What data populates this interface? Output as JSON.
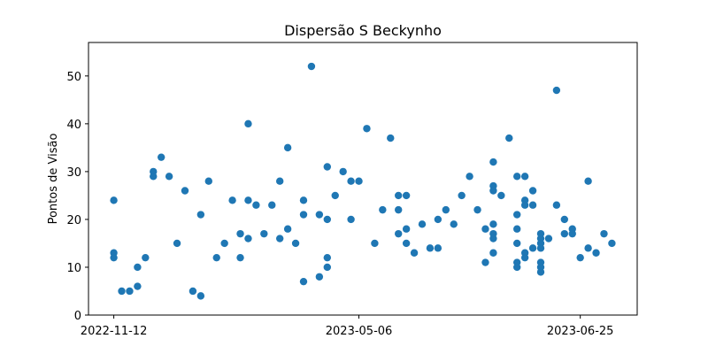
{
  "chart_data": {
    "type": "scatter",
    "title": "Dispersão S Beckynho",
    "xlabel": "",
    "ylabel": "Pontos de Visão",
    "grid": false,
    "legend": "none",
    "marker_color": "#1f77b4",
    "ylim": [
      0,
      57
    ],
    "yticks": [
      0,
      10,
      20,
      30,
      40,
      50
    ],
    "xlim_index": [
      -3.2,
      66.2
    ],
    "xticks": [
      {
        "index": 0,
        "label": "2022-11-12"
      },
      {
        "index": 31,
        "label": "2023-05-06"
      },
      {
        "index": 59,
        "label": "2023-06-25"
      }
    ],
    "points": [
      [
        0,
        24
      ],
      [
        0,
        13
      ],
      [
        0,
        12
      ],
      [
        1,
        5
      ],
      [
        2,
        5
      ],
      [
        3,
        10
      ],
      [
        3,
        6
      ],
      [
        4,
        12
      ],
      [
        5,
        30
      ],
      [
        5,
        29
      ],
      [
        6,
        33
      ],
      [
        7,
        29
      ],
      [
        8,
        15
      ],
      [
        9,
        26
      ],
      [
        10,
        5
      ],
      [
        11,
        21
      ],
      [
        11,
        4
      ],
      [
        12,
        28
      ],
      [
        13,
        12
      ],
      [
        14,
        15
      ],
      [
        15,
        24
      ],
      [
        16,
        17
      ],
      [
        16,
        12
      ],
      [
        17,
        40
      ],
      [
        17,
        24
      ],
      [
        17,
        16
      ],
      [
        18,
        23
      ],
      [
        19,
        17
      ],
      [
        20,
        23
      ],
      [
        21,
        28
      ],
      [
        21,
        16
      ],
      [
        22,
        35
      ],
      [
        22,
        18
      ],
      [
        23,
        15
      ],
      [
        24,
        24
      ],
      [
        24,
        21
      ],
      [
        24,
        7
      ],
      [
        25,
        52
      ],
      [
        26,
        21
      ],
      [
        26,
        8
      ],
      [
        27,
        31
      ],
      [
        27,
        20
      ],
      [
        27,
        12
      ],
      [
        27,
        10
      ],
      [
        28,
        25
      ],
      [
        29,
        30
      ],
      [
        30,
        28
      ],
      [
        30,
        20
      ],
      [
        31,
        28
      ],
      [
        32,
        39
      ],
      [
        33,
        15
      ],
      [
        34,
        22
      ],
      [
        35,
        37
      ],
      [
        36,
        25
      ],
      [
        36,
        22
      ],
      [
        36,
        17
      ],
      [
        37,
        25
      ],
      [
        37,
        18
      ],
      [
        37,
        15
      ],
      [
        38,
        13
      ],
      [
        39,
        19
      ],
      [
        40,
        14
      ],
      [
        41,
        20
      ],
      [
        41,
        14
      ],
      [
        42,
        22
      ],
      [
        43,
        19
      ],
      [
        44,
        25
      ],
      [
        45,
        29
      ],
      [
        46,
        22
      ],
      [
        47,
        18
      ],
      [
        47,
        11
      ],
      [
        48,
        32
      ],
      [
        48,
        27
      ],
      [
        48,
        26
      ],
      [
        48,
        19
      ],
      [
        48,
        17
      ],
      [
        48,
        16
      ],
      [
        48,
        13
      ],
      [
        49,
        25
      ],
      [
        50,
        37
      ],
      [
        51,
        29
      ],
      [
        51,
        21
      ],
      [
        51,
        18
      ],
      [
        51,
        15
      ],
      [
        51,
        11
      ],
      [
        51,
        10
      ],
      [
        52,
        29
      ],
      [
        52,
        24
      ],
      [
        52,
        23
      ],
      [
        52,
        13
      ],
      [
        52,
        12
      ],
      [
        53,
        26
      ],
      [
        53,
        23
      ],
      [
        53,
        14
      ],
      [
        54,
        17
      ],
      [
        54,
        16
      ],
      [
        54,
        15
      ],
      [
        54,
        14
      ],
      [
        54,
        11
      ],
      [
        54,
        10
      ],
      [
        54,
        9
      ],
      [
        55,
        16
      ],
      [
        56,
        47
      ],
      [
        56,
        23
      ],
      [
        57,
        20
      ],
      [
        57,
        17
      ],
      [
        58,
        18
      ],
      [
        58,
        17
      ],
      [
        59,
        12
      ],
      [
        60,
        28
      ],
      [
        60,
        14
      ],
      [
        61,
        13
      ],
      [
        62,
        17
      ],
      [
        63,
        15
      ]
    ]
  }
}
